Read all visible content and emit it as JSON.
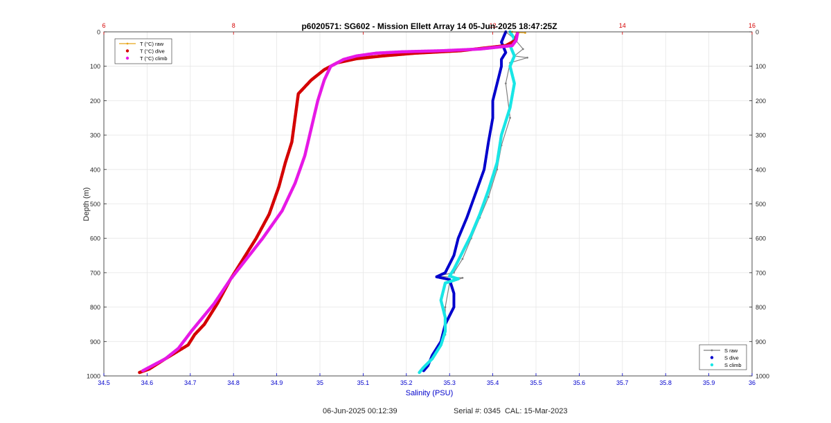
{
  "title": "p6020571: SG602 - Mission Ellett Array 14 05-Jun-2025 18:47:25Z",
  "footer": {
    "timestamp": "06-Jun-2025 00:12:39",
    "serial": "Serial #: 0345  CAL: 15-Mar-2023"
  },
  "colors": {
    "t_raw": "#e8a317",
    "t_dive": "#d40000",
    "t_climb": "#e619e6",
    "s_raw": "#7f7f7f",
    "s_dive": "#0000cc",
    "s_climb": "#19e6e6",
    "top_axis": "#d40000",
    "bottom_axis": "#0000cc",
    "grid": "#e6e6e6"
  },
  "chart_data": {
    "type": "scatter",
    "title": "p6020571: SG602 - Mission Ellett Array 14 05-Jun-2025 18:47:25Z",
    "ylabel": "Depth (m)",
    "xlabel": "Salinity (PSU)",
    "ylim": [
      0,
      1000
    ],
    "y_reversed": true,
    "y_ticks": [
      0,
      100,
      200,
      300,
      400,
      500,
      600,
      700,
      800,
      900,
      1000
    ],
    "x_bottom": {
      "label": "Salinity (PSU)",
      "lim": [
        34.5,
        36
      ],
      "ticks": [
        34.5,
        34.6,
        34.7,
        34.8,
        34.9,
        35,
        35.1,
        35.2,
        35.3,
        35.4,
        35.5,
        35.6,
        35.7,
        35.8,
        35.9,
        36
      ],
      "tick_labels": [
        "34.5",
        "34.6",
        "34.7",
        "34.8",
        "34.9",
        "35",
        "35.1",
        "35.2",
        "35.3",
        "35.4",
        "35.5",
        "35.6",
        "35.7",
        "35.8",
        "35.9",
        "36"
      ]
    },
    "x_top": {
      "lim": [
        6,
        16
      ],
      "ticks": [
        6,
        8,
        10,
        12,
        14,
        16
      ],
      "tick_labels": [
        "6",
        "8",
        "",
        "12",
        "14",
        "16"
      ]
    },
    "grid": true,
    "legend_temperature": {
      "placement": "top-left",
      "entries": [
        "T (°C) raw",
        "T (°C) dive",
        "T (°C) climb"
      ]
    },
    "legend_salinity": {
      "placement": "bottom-right",
      "entries": [
        "S raw",
        "S dive",
        "S climb"
      ]
    },
    "series": [
      {
        "name": "T (°C) raw",
        "axis": "top",
        "points": [
          [
            12.3,
            0
          ],
          [
            12.4,
            2
          ],
          [
            12.5,
            3
          ]
        ]
      },
      {
        "name": "T (°C) dive",
        "axis": "top",
        "points": [
          [
            12.38,
            5
          ],
          [
            12.36,
            15
          ],
          [
            12.35,
            25
          ],
          [
            12.2,
            40
          ],
          [
            11.5,
            55
          ],
          [
            10.8,
            62
          ],
          [
            10.3,
            70
          ],
          [
            9.9,
            78
          ],
          [
            9.6,
            90
          ],
          [
            9.4,
            110
          ],
          [
            9.2,
            140
          ],
          [
            9.0,
            180
          ],
          [
            8.95,
            250
          ],
          [
            8.9,
            320
          ],
          [
            8.8,
            380
          ],
          [
            8.7,
            450
          ],
          [
            8.55,
            530
          ],
          [
            8.35,
            600
          ],
          [
            8.15,
            660
          ],
          [
            7.95,
            720
          ],
          [
            7.75,
            790
          ],
          [
            7.55,
            850
          ],
          [
            7.4,
            880
          ],
          [
            7.3,
            910
          ],
          [
            6.95,
            950
          ],
          [
            6.7,
            980
          ],
          [
            6.55,
            990
          ]
        ]
      },
      {
        "name": "T (°C) climb",
        "axis": "top",
        "points": [
          [
            12.38,
            5
          ],
          [
            12.37,
            15
          ],
          [
            12.36,
            25
          ],
          [
            12.3,
            40
          ],
          [
            11.8,
            50
          ],
          [
            11.2,
            55
          ],
          [
            10.6,
            58
          ],
          [
            10.2,
            62
          ],
          [
            9.9,
            70
          ],
          [
            9.7,
            80
          ],
          [
            9.5,
            100
          ],
          [
            9.4,
            140
          ],
          [
            9.3,
            200
          ],
          [
            9.2,
            280
          ],
          [
            9.1,
            360
          ],
          [
            8.95,
            440
          ],
          [
            8.75,
            520
          ],
          [
            8.45,
            600
          ],
          [
            8.2,
            660
          ],
          [
            7.95,
            720
          ],
          [
            7.7,
            790
          ],
          [
            7.35,
            870
          ],
          [
            7.15,
            920
          ],
          [
            6.95,
            950
          ],
          [
            6.8,
            965
          ],
          [
            6.6,
            985
          ]
        ]
      },
      {
        "name": "S raw",
        "axis": "bottom",
        "points": [
          [
            35.43,
            0
          ],
          [
            35.45,
            20
          ],
          [
            35.47,
            50
          ],
          [
            35.45,
            70
          ],
          [
            35.48,
            75
          ],
          [
            35.44,
            90
          ],
          [
            35.43,
            150
          ],
          [
            35.44,
            250
          ],
          [
            35.42,
            330
          ],
          [
            35.41,
            400
          ],
          [
            35.39,
            480
          ],
          [
            35.37,
            540
          ],
          [
            35.35,
            600
          ],
          [
            35.33,
            660
          ],
          [
            35.31,
            700
          ],
          [
            35.27,
            710
          ],
          [
            35.33,
            715
          ],
          [
            35.3,
            730
          ],
          [
            35.29,
            800
          ],
          [
            35.29,
            880
          ],
          [
            35.27,
            930
          ],
          [
            35.25,
            970
          ],
          [
            35.23,
            990
          ]
        ]
      },
      {
        "name": "S dive",
        "axis": "bottom",
        "points": [
          [
            35.43,
            0
          ],
          [
            35.42,
            30
          ],
          [
            35.43,
            60
          ],
          [
            35.42,
            80
          ],
          [
            35.42,
            100
          ],
          [
            35.41,
            150
          ],
          [
            35.4,
            200
          ],
          [
            35.4,
            250
          ],
          [
            35.39,
            320
          ],
          [
            35.38,
            400
          ],
          [
            35.36,
            470
          ],
          [
            35.34,
            540
          ],
          [
            35.32,
            600
          ],
          [
            35.31,
            650
          ],
          [
            35.29,
            700
          ],
          [
            35.27,
            712
          ],
          [
            35.3,
            720
          ],
          [
            35.31,
            760
          ],
          [
            35.31,
            800
          ],
          [
            35.29,
            850
          ],
          [
            35.28,
            900
          ],
          [
            35.26,
            940
          ],
          [
            35.25,
            970
          ],
          [
            35.24,
            985
          ]
        ]
      },
      {
        "name": "S climb",
        "axis": "bottom",
        "points": [
          [
            35.44,
            0
          ],
          [
            35.45,
            20
          ],
          [
            35.44,
            40
          ],
          [
            35.45,
            70
          ],
          [
            35.44,
            100
          ],
          [
            35.45,
            150
          ],
          [
            35.44,
            220
          ],
          [
            35.42,
            300
          ],
          [
            35.41,
            380
          ],
          [
            35.39,
            460
          ],
          [
            35.37,
            530
          ],
          [
            35.35,
            590
          ],
          [
            35.33,
            640
          ],
          [
            35.31,
            690
          ],
          [
            35.3,
            710
          ],
          [
            35.32,
            718
          ],
          [
            35.29,
            730
          ],
          [
            35.28,
            780
          ],
          [
            35.29,
            830
          ],
          [
            35.29,
            870
          ],
          [
            35.28,
            910
          ],
          [
            35.26,
            950
          ],
          [
            35.24,
            975
          ],
          [
            35.23,
            990
          ]
        ]
      }
    ]
  }
}
